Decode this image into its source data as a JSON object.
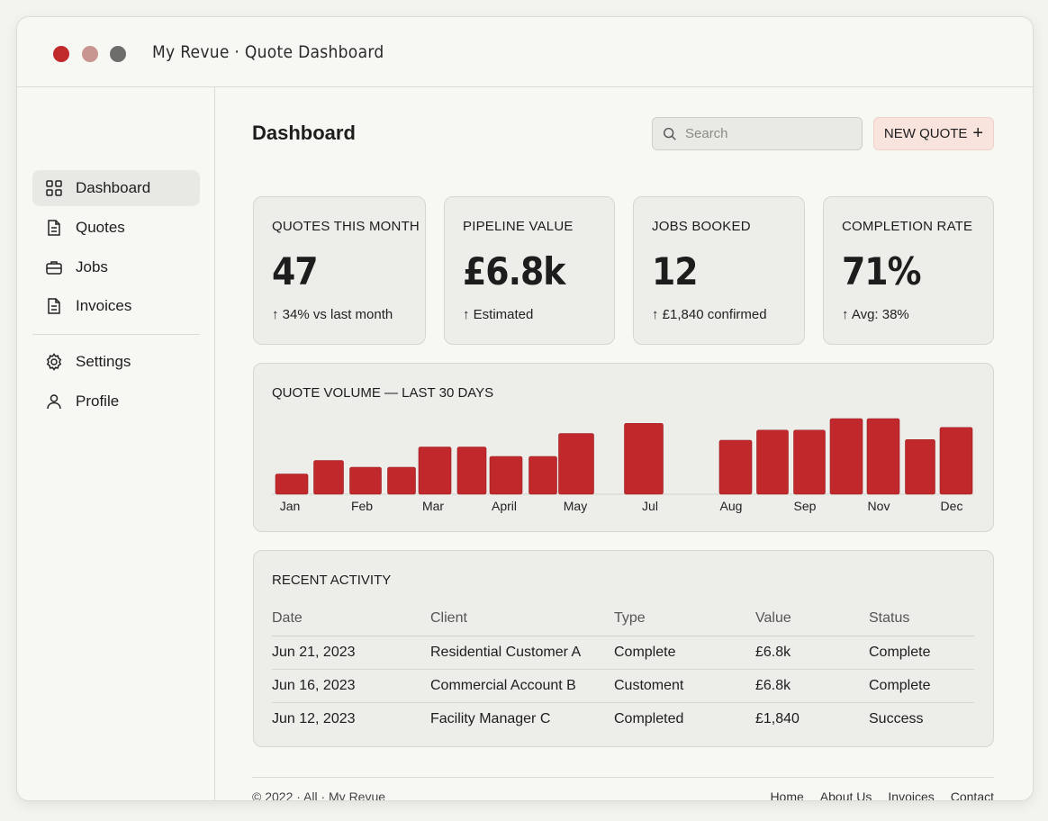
{
  "window": {
    "title": "My Revue · Quote Dashboard"
  },
  "sidebar": {
    "items": [
      {
        "label": "Dashboard",
        "icon": "grid-icon",
        "active": true
      },
      {
        "label": "Quotes",
        "icon": "document-icon"
      },
      {
        "label": "Jobs",
        "icon": "briefcase-icon"
      },
      {
        "label": "Invoices",
        "icon": "document-icon"
      },
      {
        "label": "Settings",
        "icon": "gear-icon"
      },
      {
        "label": "Profile",
        "icon": "user-icon"
      }
    ]
  },
  "header": {
    "title": "Dashboard",
    "search_placeholder": "Search",
    "new_quote_label": "NEW QUOTE",
    "new_quote_icon": "+"
  },
  "stats": [
    {
      "label": "QUOTES THIS MONTH",
      "value": "47",
      "sub": "↑ 34% vs last month"
    },
    {
      "label": "PIPELINE VALUE",
      "value": "£6.8k",
      "sub": "↑ Estimated"
    },
    {
      "label": "JOBS BOOKED",
      "value": "12",
      "sub": "↑ £1,840 confirmed"
    },
    {
      "label": "COMPLETION RATE",
      "value": "71%",
      "sub": "↑ Avg: 38%"
    }
  ],
  "chart_data": {
    "type": "bar",
    "title": "QUOTE VOLUME — LAST 30 DAYS",
    "values": [
      3,
      5,
      4,
      4,
      7,
      7,
      5.6,
      5.6,
      9,
      10.5,
      8,
      9.5,
      9.5,
      11.2,
      11.2,
      8.1,
      9.9
    ],
    "tick_labels": [
      "Jan",
      "Feb",
      "Mar",
      "April",
      "May",
      "Jul",
      "Aug",
      "Sep",
      "Nov",
      "Dec"
    ],
    "ylim": [
      0,
      12
    ],
    "color": "#c0282b"
  },
  "activity": {
    "title": "RECENT ACTIVITY",
    "columns": [
      "Date",
      "Client",
      "Type",
      "Value",
      "Status"
    ],
    "rows": [
      [
        "Jun 21, 2023",
        "Residential Customer A",
        "Complete",
        "£6.8k",
        "Complete"
      ],
      [
        "Jun 16, 2023",
        "Commercial Account B",
        "Customent",
        "£6.8k",
        "Complete"
      ],
      [
        "Jun 12, 2023",
        "Facility Manager C",
        "Completed",
        "£1,840",
        "Success"
      ]
    ]
  },
  "footer": {
    "copyright": "© 2022 · All · My Revue",
    "links": [
      "Home",
      "About Us",
      "Invoices",
      "Contact"
    ]
  }
}
